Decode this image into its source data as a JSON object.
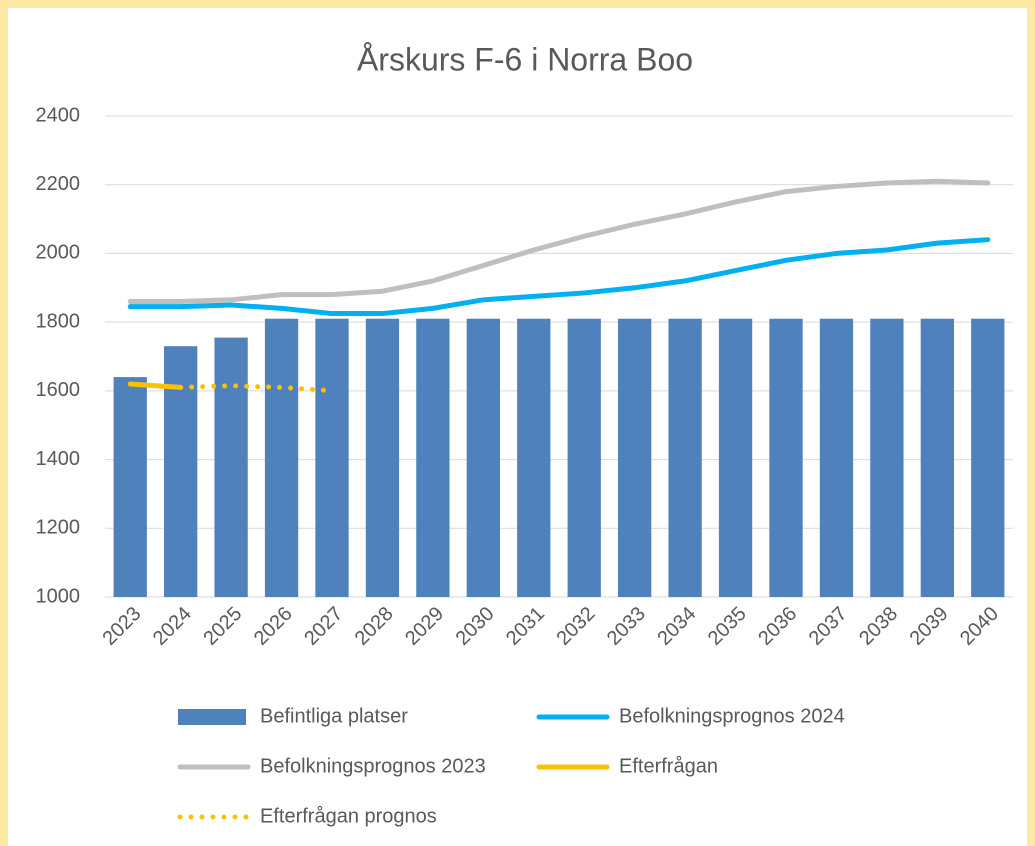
{
  "chart_data": {
    "type": "bar",
    "title": "Årskurs F-6 i Norra Boo",
    "categories": [
      "2023",
      "2024",
      "2025",
      "2026",
      "2027",
      "2028",
      "2029",
      "2030",
      "2031",
      "2032",
      "2033",
      "2034",
      "2035",
      "2036",
      "2037",
      "2038",
      "2039",
      "2040"
    ],
    "series": [
      {
        "name": "Befintliga platser",
        "type": "bar",
        "color": "#4f81bd",
        "values": [
          1640,
          1730,
          1755,
          1810,
          1810,
          1810,
          1810,
          1810,
          1810,
          1810,
          1810,
          1810,
          1810,
          1810,
          1810,
          1810,
          1810,
          1810
        ]
      },
      {
        "name": "Befolkningsprognos 2024",
        "type": "line",
        "color": "#00b0f0",
        "values": [
          1845,
          1845,
          1850,
          1840,
          1825,
          1825,
          1840,
          1865,
          1875,
          1885,
          1900,
          1920,
          1950,
          1980,
          2000,
          2010,
          2030,
          2040
        ]
      },
      {
        "name": "Befolkningsprognos 2023",
        "type": "line",
        "color": "#bfbfbf",
        "values": [
          1860,
          1860,
          1865,
          1880,
          1880,
          1890,
          1920,
          1965,
          2010,
          2050,
          2085,
          2115,
          2150,
          2180,
          2195,
          2205,
          2210,
          2205
        ]
      },
      {
        "name": "Efterfrågan",
        "type": "line",
        "color": "#ffc000",
        "values": [
          1620,
          1610,
          null,
          null,
          null,
          null,
          null,
          null,
          null,
          null,
          null,
          null,
          null,
          null,
          null,
          null,
          null,
          null
        ]
      },
      {
        "name": "Efterfrågan prognos",
        "type": "line",
        "color": "#ffc000",
        "line_style": "dotted",
        "values": [
          null,
          1610,
          1615,
          1610,
          1600,
          null,
          null,
          null,
          null,
          null,
          null,
          null,
          null,
          null,
          null,
          null,
          null,
          null
        ]
      }
    ],
    "ylim": [
      1000,
      2400
    ],
    "yticks": [
      1000,
      1200,
      1400,
      1600,
      1800,
      2000,
      2200,
      2400
    ],
    "grid": true,
    "legend": "bottom"
  }
}
